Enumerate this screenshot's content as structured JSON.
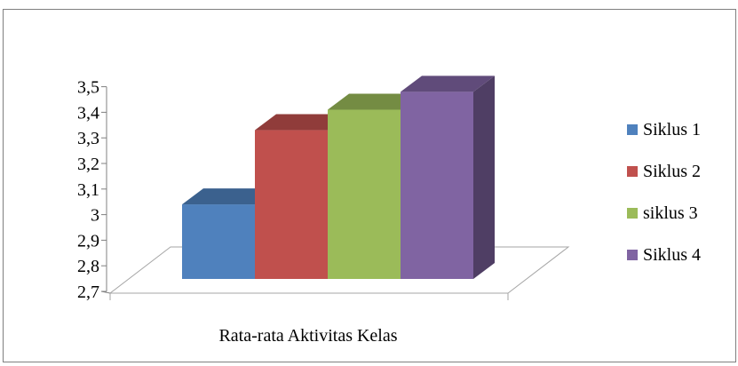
{
  "chart_data": {
    "type": "bar",
    "style": "3d-column",
    "categories": [
      "Rata-rata Aktivitas Kelas"
    ],
    "series": [
      {
        "name": "Siklus 1",
        "values": [
          3.04
        ],
        "color": "#4f81bd"
      },
      {
        "name": "Siklus 2",
        "values": [
          3.33
        ],
        "color": "#c0504d"
      },
      {
        "name": "siklus 3",
        "values": [
          3.41
        ],
        "color": "#9bbb59"
      },
      {
        "name": "Siklus 4",
        "values": [
          3.48
        ],
        "color": "#8064a2"
      }
    ],
    "y_ticks": [
      "3,5",
      "3,4",
      "3,3",
      "3,2",
      "3,1",
      "3",
      "2,9",
      "2,8",
      "2,7"
    ],
    "ylim": [
      2.7,
      3.5
    ],
    "title": "",
    "xlabel": "",
    "ylabel": "",
    "grid": false,
    "legend_position": "right"
  }
}
